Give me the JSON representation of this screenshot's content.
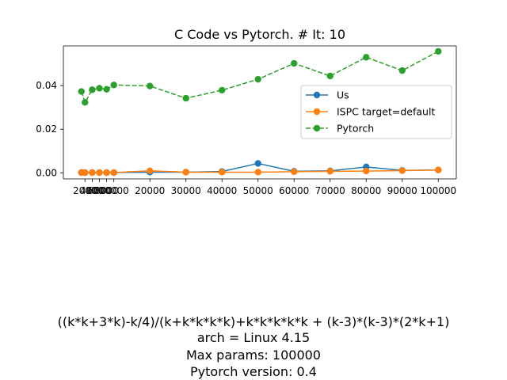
{
  "chart_data": {
    "type": "line",
    "title": "C Code vs Pytorch. # It: 10",
    "xlabel": "",
    "ylabel": "",
    "x": [
      1000,
      2000,
      4000,
      6000,
      8000,
      10000,
      20000,
      30000,
      40000,
      50000,
      60000,
      70000,
      80000,
      90000,
      100000
    ],
    "xticks": [
      2000,
      4000,
      6000,
      8000,
      10000,
      20000,
      30000,
      40000,
      50000,
      60000,
      70000,
      80000,
      90000,
      100000
    ],
    "xtick_labels": [
      "2000",
      "4000",
      "6000",
      "8000",
      "10000",
      "20000",
      "30000",
      "40000",
      "50000",
      "60000",
      "70000",
      "80000",
      "90000",
      "100000"
    ],
    "yticks": [
      0.0,
      0.02,
      0.04
    ],
    "ytick_labels": [
      "0.00",
      "0.02",
      "0.04"
    ],
    "xlim": [
      -4000,
      105000
    ],
    "ylim": [
      -0.0028,
      0.0582
    ],
    "grid": false,
    "legend_position": "center-right",
    "series": [
      {
        "name": "Us",
        "color": "#1f77b4",
        "style": "solid",
        "values": [
          0.0001,
          0.0001,
          0.0001,
          0.0001,
          0.0001,
          0.0001,
          0.0003,
          0.0003,
          0.0006,
          0.0043,
          0.0007,
          0.0009,
          0.0027,
          0.0011,
          0.0013
        ]
      },
      {
        "name": "ISPC target=default",
        "color": "#ff7f0e",
        "style": "solid",
        "values": [
          0.0001,
          0.0001,
          0.0001,
          0.0001,
          0.0001,
          0.0001,
          0.0009,
          0.0003,
          0.0003,
          0.0003,
          0.0005,
          0.0007,
          0.0008,
          0.001,
          0.0013
        ]
      },
      {
        "name": "Pytorch",
        "color": "#2ca02c",
        "style": "dashed",
        "values": [
          0.0373,
          0.0323,
          0.0381,
          0.0388,
          0.0383,
          0.0403,
          0.0398,
          0.0342,
          0.0379,
          0.0429,
          0.0502,
          0.0444,
          0.053,
          0.0469,
          0.0557
        ]
      }
    ]
  },
  "caption": {
    "formula": "((k*k+3*k)-k/4)/(k+k*k*k*k)+k*k*k*k*k + (k-3)*(k-3)*(2*k+1)",
    "arch": "arch = Linux 4.15",
    "max_params": "Max params: 100000",
    "pytorch_version": "Pytorch version: 0.4"
  }
}
